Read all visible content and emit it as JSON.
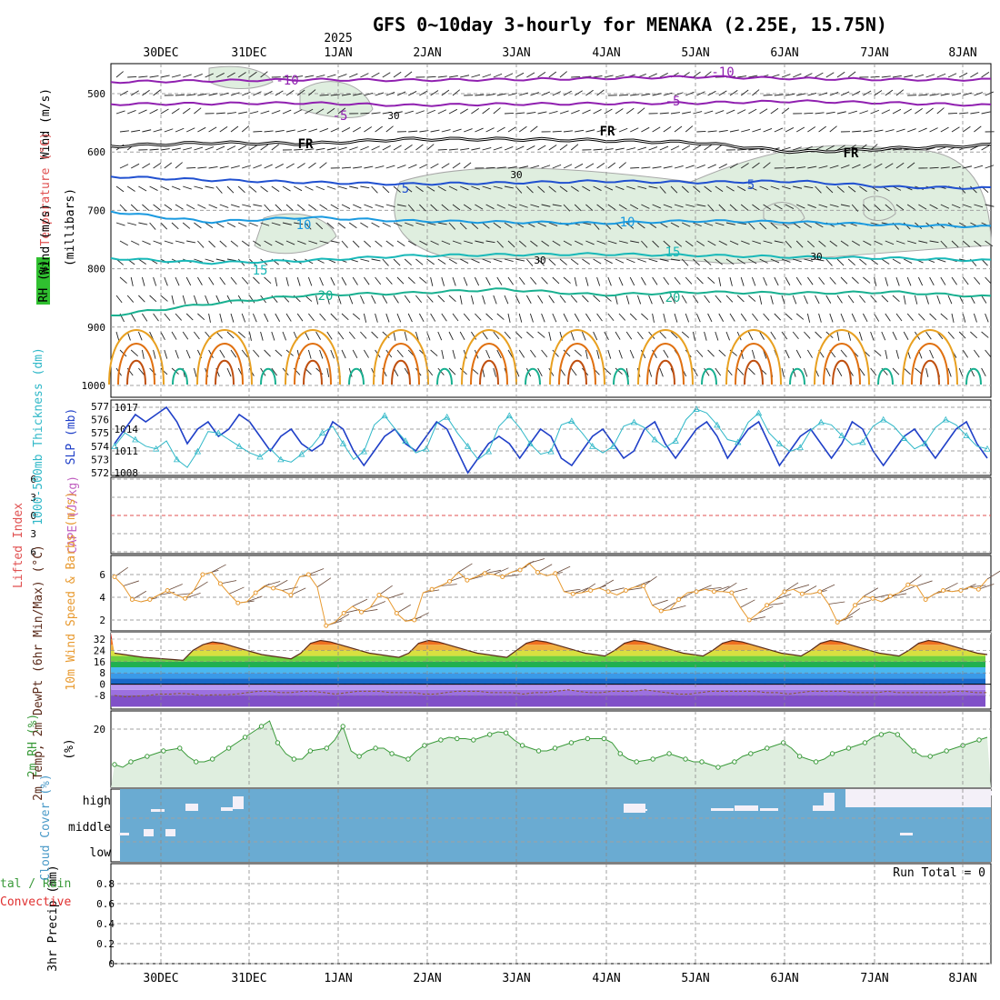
{
  "title": "GFS 0~10day 3-hourly for MENAKA (2.25E, 15.75N)",
  "year_label": "2025",
  "dates": [
    "30DEC",
    "31DEC",
    "1JAN",
    "2JAN",
    "3JAN",
    "4JAN",
    "5JAN",
    "6JAN",
    "7JAN",
    "8JAN"
  ],
  "colors": {
    "grid": "#a0a0a0",
    "rh_fill": "#dfeedf",
    "cloud": "#6aabd2",
    "slp": "#2040c8",
    "thickness": "#30b8c8",
    "wind": "#e89a30",
    "rh2m": "#3a9a3a",
    "temp": "#5a2a1a"
  },
  "chart_data": [
    {
      "panel": "upper-air",
      "type": "contour",
      "yaxis_label": "(millibars)",
      "side_labels": [
        "Wind (m/s)",
        "Temperature (°C)",
        "RH (%)"
      ],
      "yticks": [
        500,
        600,
        700,
        800,
        900,
        1000
      ],
      "ylim": [
        1000,
        450
      ],
      "isotherm_labels": [
        {
          "text": "-10",
          "color": "#9020b0"
        },
        {
          "text": "-5",
          "color": "#9020b0"
        },
        {
          "text": "FR",
          "color": "#000000"
        },
        {
          "text": "5",
          "color": "#2050d0"
        },
        {
          "text": "10",
          "color": "#1a9ae0"
        },
        {
          "text": "15",
          "color": "#18b8b8"
        },
        {
          "text": "20",
          "color": "#18b090"
        }
      ],
      "rh_contour_labels": [
        "30",
        "30",
        "30",
        "30"
      ],
      "isotherm_levels_mb": {
        "-10": [
          480,
          478,
          476,
          477,
          476,
          474,
          471,
          474,
          476,
          476
        ],
        "-5": [
          518,
          517,
          516,
          520,
          518,
          517,
          516,
          513,
          516,
          520
        ],
        "FR": [
          590,
          584,
          586,
          578,
          578,
          580,
          584,
          600,
          594,
          588
        ],
        "5": [
          642,
          648,
          652,
          655,
          653,
          650,
          652,
          650,
          660,
          662
        ],
        "10": [
          702,
          720,
          712,
          718,
          720,
          722,
          718,
          720,
          725,
          728
        ],
        "15": [
          782,
          790,
          786,
          778,
          776,
          775,
          777,
          780,
          782,
          786
        ],
        "20": [
          880,
          860,
          845,
          842,
          835,
          845,
          840,
          842,
          840,
          848
        ]
      }
    },
    {
      "panel": "thickness-slp",
      "type": "line",
      "ylabel_left": "1000-500mb Thickness (dm)",
      "ylabel_right": "SLP (mb)",
      "yticks_left": [
        572,
        573,
        574,
        575,
        576,
        577
      ],
      "yticks_right": [
        1008,
        1011,
        1014,
        1017
      ],
      "series": [
        {
          "name": "SLP",
          "color": "#2040c8",
          "values": [
            1012,
            1014,
            1016,
            1015,
            1016,
            1017,
            1015,
            1012,
            1014,
            1015,
            1013,
            1014,
            1016,
            1015,
            1013,
            1011,
            1013,
            1014,
            1012,
            1011,
            1012,
            1015,
            1014,
            1011,
            1009,
            1011,
            1013,
            1014,
            1012,
            1011,
            1013,
            1015,
            1014,
            1011,
            1008,
            1010,
            1012,
            1013,
            1012,
            1010,
            1012,
            1014,
            1013,
            1010,
            1009,
            1011,
            1013,
            1014,
            1012,
            1010,
            1011,
            1014,
            1015,
            1012,
            1010,
            1012,
            1014,
            1015,
            1013,
            1010,
            1012,
            1014,
            1015,
            1012,
            1009,
            1011,
            1013,
            1014,
            1012,
            1010,
            1012,
            1015,
            1014,
            1011,
            1009,
            1011,
            1013,
            1014,
            1012,
            1010,
            1012,
            1014,
            1015,
            1012,
            1010
          ]
        },
        {
          "name": "Thickness",
          "color": "#30b8c8",
          "values": [
            574,
            575,
            574.5,
            574,
            573.8,
            574.4,
            573,
            572.4,
            573.6,
            575.1,
            575,
            574.5,
            574,
            573.5,
            573.2,
            573.8,
            573,
            572.8,
            573.4,
            574,
            575,
            575.5,
            574.2,
            573,
            573.6,
            575.6,
            576.3,
            575.3,
            574.4,
            573.5,
            573.8,
            575.7,
            576.2,
            575,
            574,
            573,
            573.6,
            575.5,
            576.3,
            575.4,
            574.2,
            573.4,
            573.6,
            575.6,
            575.9,
            575,
            574,
            573.5,
            574,
            575.5,
            575.8,
            575.4,
            574.5,
            573.9,
            574.4,
            576,
            576.8,
            576.5,
            575.6,
            574.5,
            574.3,
            575.8,
            576.5,
            575,
            574.2,
            573.6,
            573.9,
            575.2,
            575.8,
            575.6,
            574.8,
            574.1,
            574.3,
            575.5,
            576,
            575.5,
            574.6,
            573.8,
            574.2,
            575.4,
            576,
            575.6,
            574.8,
            574,
            573.8
          ]
        }
      ]
    },
    {
      "panel": "stability",
      "type": "line",
      "ylabel_left": "Lifted Index",
      "ylabel_right": "CAPE (J/kg)",
      "yticks": [
        -6,
        -3,
        0,
        3,
        6
      ],
      "series": [
        {
          "name": "Lifted Index",
          "values": []
        }
      ]
    },
    {
      "panel": "wind10m",
      "type": "line",
      "ylabel": "10m Wind Speed & Barbs (m/s)",
      "yticks": [
        2,
        4,
        6
      ],
      "series": [
        {
          "name": "10m Wind Speed",
          "color": "#e89a30",
          "values": [
            5.8,
            5,
            3.8,
            3.6,
            3.8,
            4.2,
            4.6,
            4.2,
            3.9,
            4.6,
            6,
            6.2,
            5.2,
            4.3,
            3.5,
            3.6,
            4.4,
            5,
            4.8,
            4.6,
            4.2,
            5.8,
            6,
            4.9,
            1.5,
            1.8,
            2.6,
            3.2,
            2.7,
            3.1,
            4.2,
            3.9,
            2.6,
            1.9,
            2,
            4.4,
            4.7,
            5,
            5.4,
            6.2,
            5.5,
            5.8,
            6.1,
            6,
            5.8,
            6.2,
            6.4,
            7,
            6.2,
            5.9,
            6.1,
            4.5,
            4.3,
            4.4,
            4.6,
            4.8,
            4.5,
            4.2,
            4.6,
            4.9,
            5,
            3.3,
            2.8,
            2.9,
            3.8,
            4.4,
            4.5,
            4.7,
            4.5,
            4.5,
            4.4,
            3.1,
            2,
            2.6,
            3.3,
            3.8,
            4.5,
            4.7,
            4.3,
            4.3,
            4.5,
            3.4,
            1.8,
            2.2,
            3.3,
            4.1,
            3.9,
            3.6,
            4.1,
            4.4,
            5.1,
            5,
            3.8,
            4.3,
            4.6,
            4.5,
            4.6,
            4.9,
            4.7,
            5.6
          ]
        }
      ]
    },
    {
      "panel": "temperature",
      "type": "area",
      "ylabel": "2m Temp, 2m DewPt (6hr Min/Max) (°C)",
      "yticks": [
        -8,
        0,
        8,
        16,
        24,
        32
      ],
      "series": [
        {
          "name": "2m Temp",
          "values": [
            22,
            21,
            20,
            19,
            18.5,
            18,
            17.5,
            17,
            24,
            28,
            30,
            29,
            27,
            25,
            23,
            21,
            20,
            19,
            18,
            22,
            29,
            31,
            30,
            28,
            26,
            24,
            22,
            21,
            20,
            19,
            22,
            29,
            31,
            30,
            28,
            26,
            24,
            22,
            21,
            20,
            19,
            24,
            29,
            31,
            30,
            28,
            26,
            24,
            22,
            21,
            20,
            24,
            29,
            31,
            30,
            28,
            26,
            24,
            22,
            21,
            20,
            24,
            29,
            31,
            30,
            28,
            26,
            24,
            22,
            21,
            20,
            24,
            29,
            31,
            30,
            28,
            26,
            24,
            22,
            21,
            20,
            24,
            29,
            31,
            30,
            28,
            26,
            24,
            22,
            21
          ]
        },
        {
          "name": "2m DewPt",
          "values": [
            -8,
            -9,
            -8.5,
            -8,
            -7,
            -7,
            -6.5,
            -7,
            -8,
            -7.5,
            -7.5,
            -7,
            -6,
            -5,
            -5,
            -6,
            -6,
            -5,
            -5,
            -6,
            -7,
            -6,
            -5,
            -5,
            -5,
            -6,
            -6,
            -6,
            -7,
            -7,
            -6,
            -5,
            -5,
            -5,
            -6,
            -6,
            -6,
            -7,
            -6,
            -6,
            -5,
            -4,
            -5,
            -6,
            -6,
            -5,
            -5,
            -5,
            -4,
            -5,
            -6,
            -7,
            -7,
            -6,
            -5,
            -5,
            -5,
            -5,
            -5,
            -6,
            -6,
            -7,
            -6,
            -5,
            -5,
            -5,
            -5,
            -6,
            -6,
            -6,
            -5,
            -6,
            -6,
            -6,
            -6,
            -6,
            -5,
            -5,
            -6,
            -6
          ]
        }
      ]
    },
    {
      "panel": "rh2m",
      "type": "line",
      "ylabel": "2m RH (%)",
      "yticks": [
        20
      ],
      "series": [
        {
          "name": "2m RH",
          "values": [
            7,
            6,
            8,
            9,
            10,
            11,
            12,
            12.5,
            13,
            10,
            8,
            8,
            9,
            11,
            13,
            15,
            17,
            19,
            21,
            23,
            15,
            11,
            9,
            9,
            12,
            12.5,
            13,
            16,
            21,
            12,
            10,
            12,
            13,
            13,
            11,
            10,
            9,
            12,
            14,
            15,
            16,
            17,
            16.5,
            16.5,
            16,
            17,
            18,
            19,
            18.6,
            16,
            14,
            13,
            12,
            12,
            13,
            14,
            15,
            16,
            16.5,
            16.5,
            16.5,
            15,
            11,
            9,
            8,
            8.5,
            9,
            10,
            11,
            10,
            9,
            8,
            8,
            7,
            6,
            7,
            8,
            10,
            11,
            12,
            13,
            14,
            15,
            13,
            10,
            9,
            8,
            9,
            11,
            12,
            13,
            14,
            15,
            17,
            18,
            19,
            18,
            15,
            12,
            10,
            10,
            11,
            12,
            13,
            14,
            15,
            16,
            17
          ]
        }
      ]
    },
    {
      "panel": "cloud",
      "type": "bar",
      "ylabel": "Cloud Cover (%)",
      "ytick_labels": [
        "high",
        "middle",
        "low"
      ]
    },
    {
      "panel": "precip",
      "type": "bar",
      "ylabel": "3hr Precip (mm)",
      "ylabel_left": [
        "tal / Rain",
        "Convective"
      ],
      "yticks": [
        0,
        0.2,
        0.4,
        0.6,
        0.8
      ],
      "run_total_label": "Run Total = 0",
      "values": []
    }
  ]
}
